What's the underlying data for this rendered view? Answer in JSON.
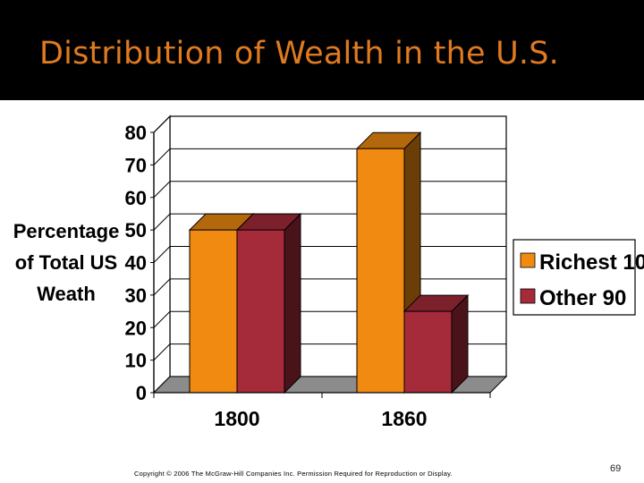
{
  "slide": {
    "title": "Distribution of Wealth in the U.S.",
    "copyright": "Copyright © 2006 The McGraw-Hill Companies Inc. Permission Required for Reproduction or Display.",
    "page_number": "69"
  },
  "colors": {
    "title": "#e07a1f",
    "title_bar": "#000000",
    "richest": "#f08a10",
    "other": "#a52a3a"
  },
  "chart_data": {
    "type": "bar",
    "style": "3d-clustered-column",
    "title": "",
    "xlabel": "",
    "ylabel_lines": [
      "Percentage",
      "of Total US",
      "Weath"
    ],
    "categories": [
      "1800",
      "1860"
    ],
    "series": [
      {
        "name": "Richest 10",
        "values": [
          50,
          75
        ]
      },
      {
        "name": "Other 90",
        "values": [
          50,
          25
        ]
      }
    ],
    "ylim": [
      0,
      80
    ],
    "yticks": [
      0,
      10,
      20,
      30,
      40,
      50,
      60,
      70,
      80
    ],
    "grid": true,
    "legend_position": "right"
  }
}
